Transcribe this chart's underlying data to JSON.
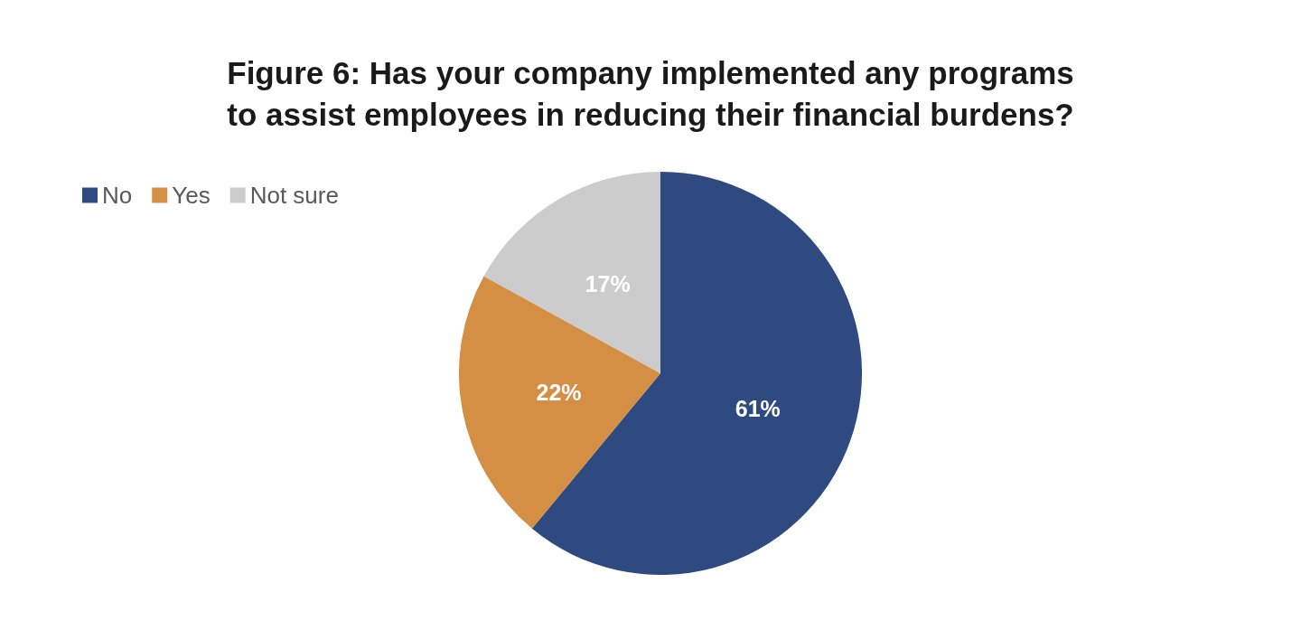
{
  "chart_data": {
    "type": "pie",
    "title": "Figure 6: Has your company implemented any programs\nto assist employees in reducing their financial burdens?",
    "categories": [
      "No",
      "Yes",
      "Not sure"
    ],
    "values": [
      61,
      22,
      17
    ],
    "colors": [
      "#2e4a80",
      "#d48f45",
      "#cccccc"
    ],
    "value_labels": [
      "61%",
      "22%",
      "17%"
    ],
    "legend": "top left"
  }
}
